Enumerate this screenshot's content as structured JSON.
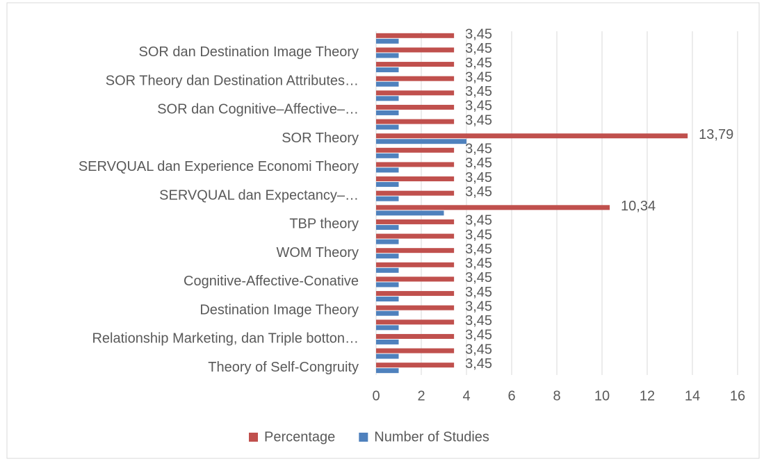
{
  "chart_data": {
    "type": "bar",
    "orientation": "horizontal",
    "categories": [
      "Theory of Self-Congruity",
      null,
      "Relationship Marketing, dan Triple botton…",
      null,
      "Destination Image Theory",
      null,
      "Cognitive-Affective-Conative",
      null,
      "WOM Theory",
      null,
      "TBP theory",
      null,
      "SERVQUAL dan Expectancy–…",
      null,
      "SERVQUAL dan Experience Economi Theory",
      null,
      "SOR Theory",
      null,
      "SOR dan Cognitive–Affective–…",
      null,
      "SOR Theory dan Destination Attributes…",
      null,
      "SOR dan Destination Image Theory",
      null
    ],
    "series": [
      {
        "name": "Percentage",
        "color": "#c0504d",
        "values": [
          3.45,
          3.45,
          3.45,
          3.45,
          3.45,
          3.45,
          3.45,
          3.45,
          3.45,
          3.45,
          3.45,
          10.34,
          3.45,
          3.45,
          3.45,
          3.45,
          13.79,
          3.45,
          3.45,
          3.45,
          3.45,
          3.45,
          3.45,
          3.45
        ],
        "value_labels": [
          "3,45",
          "3,45",
          "3,45",
          "3,45",
          "3,45",
          "3,45",
          "3,45",
          "3,45",
          "3,45",
          "3,45",
          "3,45",
          "10,34",
          "3,45",
          "3,45",
          "3,45",
          "3,45",
          "13,79",
          "3,45",
          "3,45",
          "3,45",
          "3,45",
          "3,45",
          "3,45",
          "3,45"
        ]
      },
      {
        "name": "Number of Studies",
        "color": "#4f81bd",
        "values": [
          1,
          1,
          1,
          1,
          1,
          1,
          1,
          1,
          1,
          1,
          1,
          3,
          1,
          1,
          1,
          1,
          4,
          1,
          1,
          1,
          1,
          1,
          1,
          1
        ]
      }
    ],
    "xlim": [
      0,
      16
    ],
    "xticks": [
      0,
      2,
      4,
      6,
      8,
      10,
      12,
      14,
      16
    ],
    "grid": true,
    "legend": "bottom"
  }
}
